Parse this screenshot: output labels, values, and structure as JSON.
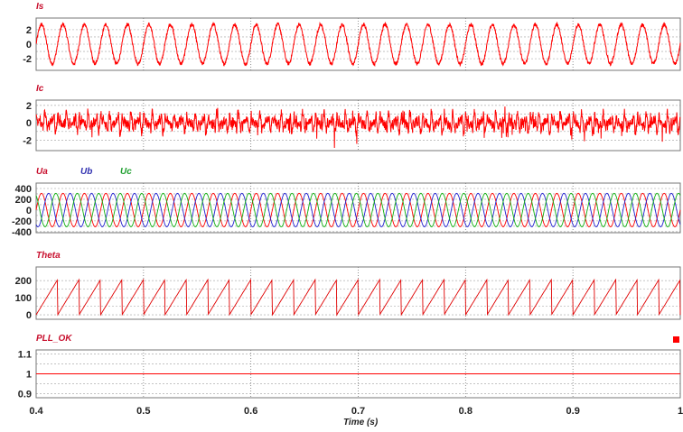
{
  "chart_data": [
    {
      "type": "line",
      "title": "",
      "xlim": [
        0.4,
        1.0
      ],
      "ylim": [
        -3.6,
        3.6
      ],
      "yticks": [
        2,
        0,
        -2
      ],
      "grid": true,
      "series": [
        {
          "name": "Is",
          "color": "#ff0000",
          "label_color": "#c8102e",
          "freq_hz": 50,
          "amplitude": 2.7,
          "noise": 0.25,
          "kind": "sine"
        }
      ]
    },
    {
      "type": "line",
      "title": "",
      "xlim": [
        0.4,
        1.0
      ],
      "ylim": [
        -3.2,
        2.6
      ],
      "yticks": [
        2,
        0,
        -2
      ],
      "grid": true,
      "series": [
        {
          "name": "Ic",
          "color": "#ff0000",
          "label_color": "#c8102e",
          "freq_hz": 50,
          "amplitude": 0.8,
          "noise": 0.5,
          "kind": "harmonic"
        }
      ]
    },
    {
      "type": "line",
      "title": "",
      "xlim": [
        0.4,
        1.0
      ],
      "ylim": [
        -420,
        500
      ],
      "yticks": [
        400,
        200,
        0,
        -200,
        -400
      ],
      "grid": true,
      "series": [
        {
          "name": "Ua",
          "color": "#ff0000",
          "label_color": "#c8102e",
          "freq_hz": 50,
          "amplitude": 311,
          "phase_deg": 0,
          "kind": "sine"
        },
        {
          "name": "Ub",
          "color": "#2020d0",
          "label_color": "#3030b0",
          "freq_hz": 50,
          "amplitude": 311,
          "phase_deg": -120,
          "kind": "sine"
        },
        {
          "name": "Uc",
          "color": "#10b010",
          "label_color": "#20a030",
          "freq_hz": 50,
          "amplitude": 311,
          "phase_deg": 120,
          "kind": "sine"
        }
      ]
    },
    {
      "type": "line",
      "title": "",
      "xlim": [
        0.4,
        1.0
      ],
      "ylim": [
        -26,
        280
      ],
      "yticks": [
        200,
        100,
        0
      ],
      "grid": true,
      "series": [
        {
          "name": "Theta",
          "color": "#e00000",
          "label_color": "#c8102e",
          "freq_hz": 50,
          "amplitude": 206,
          "kind": "sawtooth"
        }
      ]
    },
    {
      "type": "line",
      "title": "",
      "xlim": [
        0.4,
        1.0
      ],
      "ylim": [
        0.88,
        1.12
      ],
      "yticks": [
        1.1,
        1,
        0.9
      ],
      "grid": true,
      "series": [
        {
          "name": "PLL_OK",
          "color": "#ff0000",
          "label_color": "#c8102e",
          "value": 1,
          "kind": "constant"
        }
      ]
    }
  ],
  "x_axis": {
    "label": "Time (s)",
    "ticks": [
      0.4,
      0.5,
      0.6,
      0.7,
      0.8,
      0.9,
      1
    ],
    "tick_labels": [
      "0.4",
      "0.5",
      "0.6",
      "0.7",
      "0.8",
      "0.9",
      "1"
    ]
  }
}
